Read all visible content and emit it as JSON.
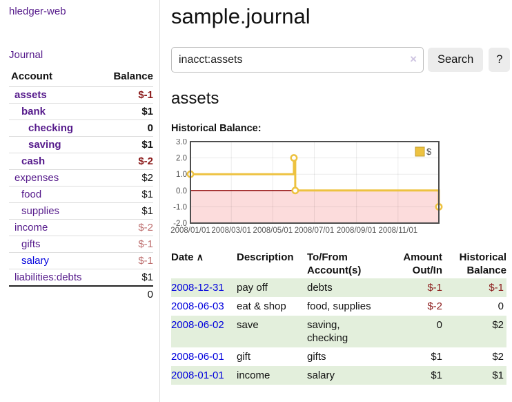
{
  "sidebar": {
    "app_title": "hledger-web",
    "nav_journal": "Journal",
    "accounts_table": {
      "col_account": "Account",
      "col_balance": "Balance",
      "rows": [
        {
          "name": "assets",
          "depth": 0,
          "balance": "$-1",
          "bold": true,
          "neg": "strong",
          "link": "purple"
        },
        {
          "name": "bank",
          "depth": 1,
          "balance": "$1",
          "bold": true,
          "neg": "",
          "link": "purple"
        },
        {
          "name": "checking",
          "depth": 2,
          "balance": "0",
          "bold": true,
          "neg": "",
          "link": "purple"
        },
        {
          "name": "saving",
          "depth": 2,
          "balance": "$1",
          "bold": true,
          "neg": "",
          "link": "purple"
        },
        {
          "name": "cash",
          "depth": 1,
          "balance": "$-2",
          "bold": true,
          "neg": "strong",
          "link": "purple"
        },
        {
          "name": "expenses",
          "depth": 0,
          "balance": "$2",
          "bold": false,
          "neg": "",
          "link": "purple"
        },
        {
          "name": "food",
          "depth": 1,
          "balance": "$1",
          "bold": false,
          "neg": "",
          "link": "purple"
        },
        {
          "name": "supplies",
          "depth": 1,
          "balance": "$1",
          "bold": false,
          "neg": "",
          "link": "purple"
        },
        {
          "name": "income",
          "depth": 0,
          "balance": "$-2",
          "bold": false,
          "neg": "muted",
          "link": "purple"
        },
        {
          "name": "gifts",
          "depth": 1,
          "balance": "$-1",
          "bold": false,
          "neg": "muted",
          "link": "purple"
        },
        {
          "name": "salary",
          "depth": 1,
          "balance": "$-1",
          "bold": false,
          "neg": "muted",
          "link": "blue"
        },
        {
          "name": "liabilities:debts",
          "depth": 0,
          "balance": "$1",
          "bold": false,
          "neg": "",
          "link": "purple"
        }
      ],
      "total": "0"
    }
  },
  "main": {
    "title": "sample.journal",
    "search": {
      "value": "inacct:assets",
      "clear_icon": "×",
      "button": "Search",
      "help_button": "?"
    },
    "account_heading": "assets",
    "chart_label": "Historical Balance:"
  },
  "chart_data": {
    "type": "line",
    "title": "Historical Balance",
    "step": true,
    "series": [
      {
        "name": "$",
        "color": "#edc240",
        "points": [
          [
            "2008-01-01",
            1
          ],
          [
            "2008-06-01",
            2
          ],
          [
            "2008-06-03",
            0
          ],
          [
            "2008-12-31",
            -1
          ]
        ]
      }
    ],
    "x_range": [
      "2008-01-01",
      "2008-12-31"
    ],
    "x_ticks": [
      "2008/01/01",
      "2008/03/01",
      "2008/05/01",
      "2008/07/01",
      "2008/09/01",
      "2008/11/01"
    ],
    "y_ticks": [
      3.0,
      2.0,
      1.0,
      0.0,
      -1.0,
      -2.0
    ],
    "ylim": [
      -2,
      3
    ],
    "grid": true,
    "legend": {
      "label": "$",
      "position": "top-right"
    },
    "zero_line_color": "#8b0000",
    "negative_fill": "#fcdcdc"
  },
  "register": {
    "headers": {
      "date": "Date",
      "sort_icon": "∧",
      "description": "Description",
      "account1": "To/From",
      "account2": "Account(s)",
      "amount1": "Amount",
      "amount2": "Out/In",
      "balance1": "Historical",
      "balance2": "Balance"
    },
    "rows": [
      {
        "date": "2008-12-31",
        "description": "pay off",
        "accounts": "debts",
        "amount": "$-1",
        "balance": "$-1"
      },
      {
        "date": "2008-06-03",
        "description": "eat & shop",
        "accounts": "food, supplies",
        "amount": "$-2",
        "balance": "0"
      },
      {
        "date": "2008-06-02",
        "description": "save",
        "accounts": "saving,\nchecking",
        "amount": "0",
        "balance": "$2"
      },
      {
        "date": "2008-06-01",
        "description": "gift",
        "accounts": "gifts",
        "amount": "$1",
        "balance": "$2"
      },
      {
        "date": "2008-01-01",
        "description": "income",
        "accounts": "salary",
        "amount": "$1",
        "balance": "$1"
      }
    ]
  },
  "colors": {
    "link_purple": "#551a8b",
    "link_blue": "#0000dd",
    "negative_strong": "#8b1a1a",
    "negative_muted": "#bd6d6d",
    "row_green": "#e3efdc",
    "chart_gold": "#edc240",
    "chart_negative_fill": "#fcdcdc",
    "chart_zero_line": "#8b0000"
  }
}
